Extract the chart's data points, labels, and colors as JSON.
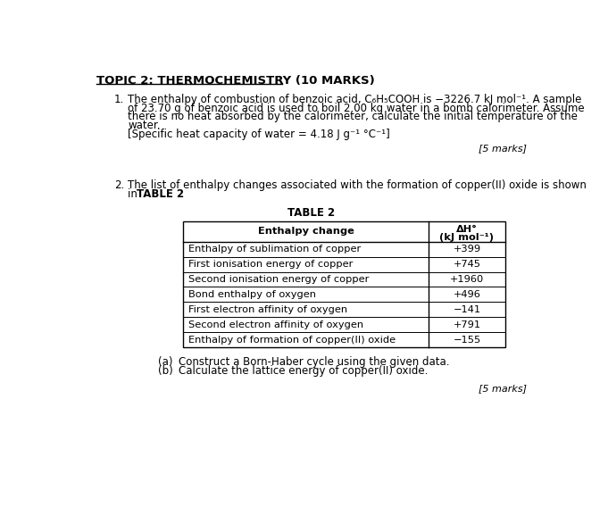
{
  "title": "TOPIC 2: THERMOCHEMISTRY (10 MARKS)",
  "q1_number": "1.",
  "q1_marks": "[5 marks]",
  "q2_number": "2.",
  "table_title": "TABLE 2",
  "table_headers_col1": "Enthalpy change",
  "table_headers_col2_line1": "ΔH°",
  "table_headers_col2_line2": "(kJ mol⁻¹)",
  "table_rows": [
    [
      "Enthalpy of sublimation of copper",
      "+399"
    ],
    [
      "First ionisation energy of copper",
      "+745"
    ],
    [
      "Second ionisation energy of copper",
      "+1960"
    ],
    [
      "Bond enthalpy of oxygen",
      "+496"
    ],
    [
      "First electron affinity of oxygen",
      "−141"
    ],
    [
      "Second electron affinity of oxygen",
      "+791"
    ],
    [
      "Enthalpy of formation of copper(II) oxide",
      "−155"
    ]
  ],
  "sub_a": "(a)",
  "sub_a_text": "Construct a Born-Haber cycle using the given data.",
  "sub_b": "(b)",
  "sub_b_text": "Calculate the lattice energy of copper(II) oxide.",
  "q2_marks": "[5 marks]",
  "bg_color": "#ffffff",
  "text_color": "#000000",
  "font_size_title": 9.5,
  "font_size_body": 8.5,
  "font_size_table": 8.2,
  "font_size_marks": 8.0,
  "q1_lines": [
    "The enthalpy of combustion of benzoic acid, C₆H₅COOH is −3226.7 kJ mol⁻¹. A sample",
    "of 23.70 g of benzoic acid is used to boil 2.00 kg water in a bomb calorimeter. Assume",
    "there is no heat absorbed by the calorimeter, calculate the initial temperature of the",
    "water.",
    "[Specific heat capacity of water = 4.18 J g⁻¹ °C⁻¹]"
  ],
  "q2_line1": "The list of enthalpy changes associated with the formation of copper(II) oxide is shown",
  "q2_line2_normal": "in ",
  "q2_line2_bold": "TABLE 2",
  "q2_line2_end": "."
}
